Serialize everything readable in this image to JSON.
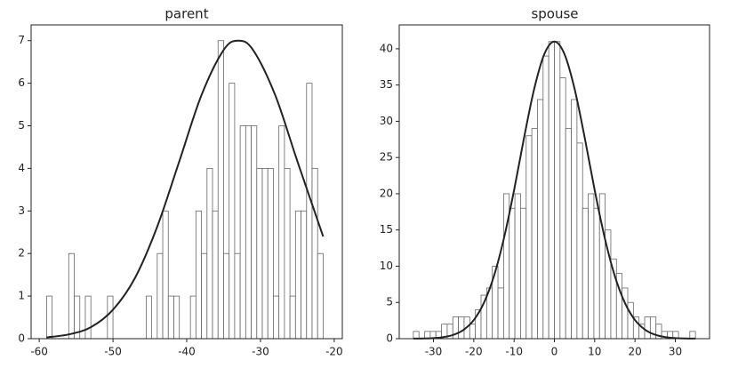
{
  "chart_data": [
    {
      "type": "histogram",
      "title": "parent",
      "bins": [
        -59,
        -58.25,
        -57.5,
        -56.75,
        -56,
        -55.25,
        -54.5,
        -53.75,
        -53,
        -52.25,
        -51.5,
        -50.75,
        -50,
        -49.25,
        -48.5,
        -47.75,
        -47,
        -46.25,
        -45.5,
        -44.75,
        -44,
        -43.25,
        -42.5,
        -41.75,
        -41,
        -40.25,
        -39.5,
        -38.75,
        -38,
        -37.25,
        -36.5,
        -35.75,
        -35,
        -34.25,
        -33.5,
        -32.75,
        -32,
        -31.25,
        -30.5,
        -29.75,
        -29,
        -28.25,
        -27.5,
        -26.75,
        -26,
        -25.25,
        -24.5,
        -23.75,
        -23,
        -22.25,
        -21.5
      ],
      "values": [
        1,
        0,
        0,
        0,
        2,
        1,
        0,
        1,
        0,
        0,
        0,
        1,
        0,
        0,
        0,
        0,
        0,
        0,
        1,
        0,
        2,
        3,
        1,
        1,
        0,
        0,
        1,
        3,
        2,
        4,
        3,
        7,
        2,
        6,
        2,
        5,
        5,
        5,
        4,
        4,
        4,
        1,
        5,
        4,
        1,
        3,
        3,
        6,
        4,
        2
      ],
      "bar_color": "#ffffff",
      "edge_color": "#666666",
      "curve": {
        "x": [
          -59,
          -56,
          -53,
          -50,
          -47,
          -44,
          -41,
          -38,
          -35,
          -33,
          -31,
          -28,
          -25,
          -21.5
        ],
        "values": [
          0.03,
          0.1,
          0.27,
          0.68,
          1.43,
          2.63,
          4.17,
          5.72,
          6.78,
          7,
          6.78,
          5.72,
          4.17,
          2.4
        ],
        "color": "#222222"
      },
      "xlim": [
        -61.1,
        -18.9
      ],
      "ylim": [
        0,
        7.37
      ],
      "xticks": [
        -60,
        -50,
        -40,
        -30,
        -20
      ],
      "yticks": [
        0,
        1,
        2,
        3,
        4,
        5,
        6,
        7
      ]
    },
    {
      "type": "histogram",
      "title": "spouse",
      "bins": [
        -35,
        -33.6,
        -32.2,
        -30.8,
        -29.4,
        -28,
        -26.6,
        -25.2,
        -23.8,
        -22.4,
        -21,
        -19.6,
        -18.2,
        -16.8,
        -15.4,
        -14,
        -12.6,
        -11.2,
        -9.8,
        -8.4,
        -7,
        -5.6,
        -4.2,
        -2.8,
        -1.4,
        0,
        1.4,
        2.8,
        4.2,
        5.6,
        7,
        8.4,
        9.8,
        11.2,
        12.6,
        14,
        15.4,
        16.8,
        18.2,
        19.6,
        21,
        22.4,
        23.8,
        25.2,
        26.6,
        28,
        29.4,
        30.8,
        32.2,
        33.6,
        35
      ],
      "values": [
        1,
        0,
        1,
        1,
        1,
        2,
        2,
        3,
        3,
        3,
        2,
        4,
        6,
        7,
        10,
        7,
        20,
        18,
        20,
        18,
        28,
        29,
        33,
        39,
        41,
        41,
        36,
        29,
        33,
        27,
        18,
        20,
        18,
        20,
        15,
        11,
        9,
        7,
        5,
        3,
        2,
        3,
        3,
        2,
        1,
        1,
        1,
        0,
        0,
        1
      ],
      "bar_color": "#ffffff",
      "edge_color": "#666666",
      "curve": {
        "x": [
          -35,
          -32.5,
          -30,
          -27.5,
          -25,
          -22.5,
          -20,
          -17.5,
          -15,
          -12.5,
          -10,
          -7.5,
          -5,
          -2.5,
          0,
          2.5,
          5,
          7.5,
          10,
          12.5,
          15,
          17.5,
          20,
          22.5,
          25,
          27.5,
          30,
          32.5,
          35
        ],
        "values": [
          0.01,
          0.03,
          0.08,
          0.22,
          0.54,
          1.24,
          2.57,
          4.93,
          8.64,
          13.9,
          20.5,
          27.8,
          34.5,
          39.27,
          41,
          39.27,
          34.5,
          27.8,
          20.5,
          13.9,
          8.64,
          4.93,
          2.57,
          1.24,
          0.54,
          0.22,
          0.08,
          0.03,
          0.01
        ],
        "color": "#222222"
      },
      "xlim": [
        -38.5,
        38.5
      ],
      "ylim": [
        0,
        43.3
      ],
      "xticks": [
        -30,
        -20,
        -10,
        0,
        10,
        20,
        30
      ],
      "yticks": [
        0,
        5,
        10,
        15,
        20,
        25,
        30,
        35,
        40
      ]
    }
  ]
}
